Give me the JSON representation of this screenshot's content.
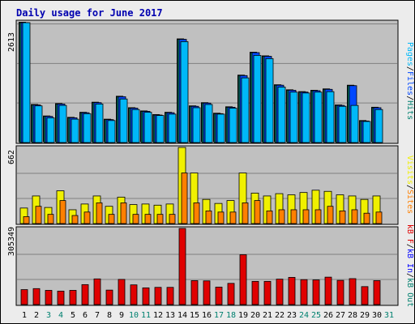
{
  "page": {
    "title": "Daily usage for June 2017"
  },
  "colors": {
    "background": "#ececec",
    "panel": "#c0c0c0",
    "title": "#0000b0",
    "pages": "#00b8f8",
    "files": "#0048ff",
    "hits": "#00806f",
    "visits": "#f0f000",
    "sites": "#ff8000",
    "kbin": "#0000ff",
    "kbout": "#00806f",
    "kbf": "#e00000",
    "bar_outline": "#000000",
    "weekend_label": "#00806f"
  },
  "chart_data": [
    {
      "type": "bar",
      "title": "Daily usage for June 2017",
      "panel": "hits",
      "ymax_label": "2613",
      "ylim": [
        0,
        2613
      ],
      "categories": [
        "1",
        "2",
        "3",
        "4",
        "5",
        "6",
        "7",
        "8",
        "9",
        "10",
        "11",
        "12",
        "13",
        "14",
        "15",
        "16",
        "17",
        "18",
        "19",
        "20",
        "21",
        "22",
        "23",
        "24",
        "25",
        "26",
        "27",
        "28",
        "29",
        "30",
        "31"
      ],
      "weekend_days": [
        "3",
        "4",
        "10",
        "11",
        "17",
        "18",
        "24",
        "25",
        "31"
      ],
      "series": [
        {
          "name": "Hits",
          "values": [
            2613,
            820,
            570,
            840,
            540,
            650,
            870,
            500,
            1000,
            750,
            680,
            600,
            650,
            2250,
            790,
            860,
            630,
            770,
            1460,
            1960,
            1880,
            1250,
            1140,
            1100,
            1130,
            1160,
            810,
            1240,
            470,
            760,
            0
          ]
        },
        {
          "name": "Files",
          "values": [
            2613,
            820,
            570,
            840,
            540,
            650,
            870,
            500,
            1000,
            750,
            680,
            600,
            650,
            2250,
            790,
            860,
            630,
            770,
            1460,
            1960,
            1880,
            1250,
            1140,
            1100,
            1130,
            1160,
            810,
            1240,
            470,
            760,
            0
          ]
        },
        {
          "name": "Pages",
          "values": [
            2613,
            800,
            540,
            810,
            510,
            630,
            840,
            480,
            950,
            720,
            660,
            590,
            620,
            2200,
            760,
            830,
            620,
            750,
            1410,
            1900,
            1830,
            1210,
            1100,
            1080,
            1100,
            1110,
            790,
            810,
            460,
            720,
            0
          ]
        }
      ],
      "right_labels": [
        "Pages",
        "Files",
        "Hits"
      ]
    },
    {
      "type": "bar",
      "panel": "visits",
      "ymax_label": "662",
      "ylim": [
        0,
        662
      ],
      "categories": [
        "1",
        "2",
        "3",
        "4",
        "5",
        "6",
        "7",
        "8",
        "9",
        "10",
        "11",
        "12",
        "13",
        "14",
        "15",
        "16",
        "17",
        "18",
        "19",
        "20",
        "21",
        "22",
        "23",
        "24",
        "25",
        "26",
        "27",
        "28",
        "29",
        "30",
        "31"
      ],
      "series": [
        {
          "name": "Visits",
          "values": [
            135,
            240,
            140,
            285,
            120,
            170,
            240,
            150,
            230,
            165,
            170,
            160,
            170,
            662,
            440,
            210,
            175,
            200,
            440,
            265,
            240,
            260,
            250,
            270,
            290,
            280,
            250,
            240,
            210,
            240,
            0
          ]
        },
        {
          "name": "Sites",
          "values": [
            60,
            150,
            80,
            200,
            70,
            100,
            180,
            80,
            180,
            80,
            80,
            80,
            80,
            440,
            180,
            110,
            100,
            100,
            180,
            200,
            110,
            120,
            120,
            120,
            120,
            150,
            110,
            120,
            90,
            100,
            0
          ]
        }
      ],
      "right_labels": [
        "Visits",
        "Sites"
      ]
    },
    {
      "type": "bar",
      "panel": "kbytes",
      "ymax_label": "305349",
      "ylim": [
        0,
        305349
      ],
      "categories": [
        "1",
        "2",
        "3",
        "4",
        "5",
        "6",
        "7",
        "8",
        "9",
        "10",
        "11",
        "12",
        "13",
        "14",
        "15",
        "16",
        "17",
        "18",
        "19",
        "20",
        "21",
        "22",
        "23",
        "24",
        "25",
        "26",
        "27",
        "28",
        "29",
        "30",
        "31"
      ],
      "series": [
        {
          "name": "kB F",
          "values": [
            60000,
            64000,
            57000,
            54000,
            57000,
            80000,
            103000,
            58000,
            101000,
            79000,
            67000,
            69000,
            69000,
            305349,
            96000,
            95000,
            70000,
            85000,
            200000,
            93000,
            93000,
            102000,
            109000,
            100000,
            99000,
            110000,
            97000,
            104000,
            72000,
            96000,
            0
          ]
        }
      ],
      "right_labels": [
        "kB F",
        "kB In",
        "kB Out"
      ]
    }
  ]
}
